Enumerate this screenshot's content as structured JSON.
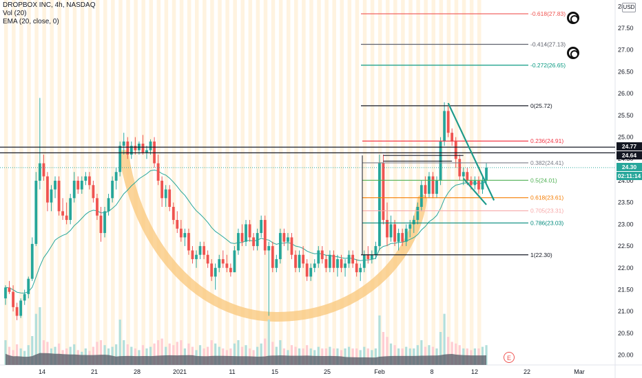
{
  "legend": {
    "title": "DROPBOX INC, 4h, NASDAQ",
    "volume": "Vol (20)",
    "ema": "EMA (20, close, 0)"
  },
  "currency": "USD",
  "price_badges": [
    {
      "label": "24.77",
      "color": "#131722"
    },
    {
      "label": "24.64",
      "color": "#131722"
    },
    {
      "label": "24.30",
      "color": "#26a69a"
    },
    {
      "label": "02:11:14",
      "color": "#26a69a"
    }
  ],
  "earnings_marker": "E",
  "chart_data": {
    "type": "candlestick",
    "symbol": "DROPBOX INC",
    "interval": "4h",
    "exchange": "NASDAQ",
    "y_axis": {
      "range": [
        19.9,
        28.1
      ],
      "ticks": [
        "20.00",
        "20.50",
        "21.00",
        "21.50",
        "22.00",
        "22.50",
        "23.00",
        "23.50",
        "24.00",
        "24.50",
        "25.00",
        "25.50",
        "26.00",
        "26.50",
        "27.00",
        "27.50",
        "28.00"
      ]
    },
    "x_axis": {
      "ticks": [
        "14",
        "21",
        "28",
        "2021",
        "11",
        "15",
        "25",
        "Feb",
        "8",
        "12",
        "22",
        "Mar"
      ]
    },
    "horizontal_levels": [
      24.77,
      24.64
    ],
    "fibonacci": [
      {
        "ratio": "-0.618",
        "price": 27.83,
        "color": "#ef5350"
      },
      {
        "ratio": "-0.414",
        "price": 27.13,
        "color": "#5d606b"
      },
      {
        "ratio": "-0.272",
        "price": 26.65,
        "color": "#089981"
      },
      {
        "ratio": "0",
        "price": 25.72,
        "color": "#131722"
      },
      {
        "ratio": "0.236",
        "price": 24.91,
        "color": "#f23645"
      },
      {
        "ratio": "0.382",
        "price": 24.41,
        "color": "#787b86"
      },
      {
        "ratio": "0.5",
        "price": 24.01,
        "color": "#4caf50"
      },
      {
        "ratio": "0.618",
        "price": 23.61,
        "color": "#f57c00"
      },
      {
        "ratio": "0.705",
        "price": 23.31,
        "color": "#f7a8a8"
      },
      {
        "ratio": "0.786",
        "price": 23.03,
        "color": "#00897b"
      },
      {
        "ratio": "1",
        "price": 22.3,
        "color": "#131722"
      }
    ],
    "candles": [
      [
        21.3,
        21.6,
        21.15,
        21.55
      ],
      [
        21.55,
        21.7,
        21.4,
        21.45
      ],
      [
        21.45,
        21.6,
        21.0,
        21.1
      ],
      [
        21.1,
        21.2,
        20.8,
        20.9
      ],
      [
        20.9,
        21.3,
        20.85,
        21.25
      ],
      [
        21.25,
        21.5,
        21.15,
        21.4
      ],
      [
        21.4,
        21.8,
        21.3,
        21.75
      ],
      [
        21.75,
        22.7,
        21.7,
        22.55
      ],
      [
        22.55,
        24.2,
        22.5,
        24.0
      ],
      [
        24.0,
        25.9,
        23.8,
        24.4
      ],
      [
        24.4,
        24.6,
        24.0,
        24.1
      ],
      [
        24.1,
        24.2,
        23.3,
        23.5
      ],
      [
        23.5,
        23.9,
        23.3,
        23.8
      ],
      [
        23.8,
        24.1,
        23.6,
        24.0
      ],
      [
        24.0,
        24.1,
        23.2,
        23.3
      ],
      [
        23.3,
        23.6,
        23.1,
        23.2
      ],
      [
        23.2,
        23.5,
        23.0,
        23.1
      ],
      [
        23.1,
        23.7,
        23.0,
        23.6
      ],
      [
        23.6,
        24.2,
        23.5,
        24.0
      ],
      [
        24.0,
        24.1,
        23.7,
        23.8
      ],
      [
        23.8,
        24.1,
        23.7,
        24.0
      ],
      [
        24.0,
        24.2,
        23.9,
        24.1
      ],
      [
        24.1,
        24.2,
        23.8,
        23.9
      ],
      [
        23.9,
        24.0,
        23.5,
        23.6
      ],
      [
        23.6,
        23.7,
        23.1,
        23.2
      ],
      [
        23.2,
        23.4,
        22.6,
        22.8
      ],
      [
        22.8,
        23.4,
        22.7,
        23.3
      ],
      [
        23.3,
        23.7,
        23.2,
        23.6
      ],
      [
        23.6,
        24.1,
        23.5,
        24.0
      ],
      [
        24.0,
        24.3,
        23.8,
        24.2
      ],
      [
        24.2,
        24.9,
        24.1,
        24.8
      ],
      [
        24.8,
        25.1,
        24.6,
        24.9
      ],
      [
        24.9,
        25.0,
        24.5,
        24.6
      ],
      [
        24.6,
        24.9,
        24.5,
        24.8
      ],
      [
        24.8,
        25.0,
        24.6,
        24.7
      ],
      [
        24.7,
        24.9,
        24.6,
        24.85
      ],
      [
        24.85,
        25.05,
        24.6,
        24.65
      ],
      [
        24.65,
        24.8,
        24.5,
        24.7
      ],
      [
        24.7,
        24.95,
        24.6,
        24.9
      ],
      [
        24.9,
        25.0,
        24.3,
        24.4
      ],
      [
        24.4,
        24.6,
        23.9,
        24.0
      ],
      [
        24.0,
        24.1,
        23.4,
        23.6
      ],
      [
        23.6,
        23.9,
        23.4,
        23.8
      ],
      [
        23.8,
        23.9,
        23.3,
        23.4
      ],
      [
        23.4,
        23.5,
        23.0,
        23.1
      ],
      [
        23.1,
        23.3,
        22.8,
        22.9
      ],
      [
        22.9,
        23.1,
        22.6,
        22.7
      ],
      [
        22.7,
        22.9,
        22.5,
        22.8
      ],
      [
        22.8,
        22.9,
        22.3,
        22.4
      ],
      [
        22.4,
        22.5,
        22.1,
        22.2
      ],
      [
        22.2,
        22.4,
        22.0,
        22.3
      ],
      [
        22.3,
        22.6,
        22.2,
        22.5
      ],
      [
        22.5,
        22.6,
        22.2,
        22.3
      ],
      [
        22.3,
        22.4,
        22.0,
        22.1
      ],
      [
        22.1,
        22.2,
        21.7,
        21.8
      ],
      [
        21.8,
        22.1,
        21.5,
        22.0
      ],
      [
        22.0,
        22.3,
        21.9,
        22.2
      ],
      [
        22.2,
        22.4,
        22.0,
        22.1
      ],
      [
        22.1,
        22.3,
        21.9,
        22.0
      ],
      [
        22.0,
        22.1,
        21.8,
        21.9
      ],
      [
        21.9,
        22.5,
        21.9,
        22.4
      ],
      [
        22.4,
        22.9,
        22.3,
        22.8
      ],
      [
        22.8,
        23.0,
        22.5,
        22.6
      ],
      [
        22.6,
        23.1,
        22.5,
        23.0
      ],
      [
        23.0,
        23.1,
        22.6,
        22.7
      ],
      [
        22.7,
        22.8,
        22.4,
        22.5
      ],
      [
        22.5,
        22.9,
        22.4,
        22.8
      ],
      [
        22.8,
        23.2,
        22.7,
        23.1
      ],
      [
        23.1,
        23.2,
        22.3,
        22.4
      ],
      [
        22.4,
        22.6,
        20.9,
        22.5
      ],
      [
        22.5,
        22.6,
        21.9,
        22.0
      ],
      [
        22.0,
        22.3,
        21.9,
        22.2
      ],
      [
        22.2,
        22.9,
        22.1,
        22.8
      ],
      [
        22.8,
        22.9,
        22.5,
        22.6
      ],
      [
        22.6,
        22.8,
        22.4,
        22.7
      ],
      [
        22.7,
        22.8,
        22.2,
        22.3
      ],
      [
        22.3,
        22.4,
        21.9,
        22.0
      ],
      [
        22.0,
        22.4,
        21.9,
        22.3
      ],
      [
        22.3,
        22.5,
        22.0,
        22.1
      ],
      [
        22.1,
        22.2,
        21.7,
        21.8
      ],
      [
        21.8,
        22.1,
        21.7,
        22.0
      ],
      [
        22.0,
        22.2,
        21.9,
        22.1
      ],
      [
        22.1,
        22.5,
        22.0,
        22.4
      ],
      [
        22.4,
        22.5,
        22.1,
        22.2
      ],
      [
        22.2,
        22.3,
        21.9,
        22.0
      ],
      [
        22.0,
        22.4,
        21.9,
        22.3
      ],
      [
        22.3,
        22.4,
        21.9,
        22.0
      ],
      [
        22.0,
        22.3,
        21.8,
        22.2
      ],
      [
        22.2,
        22.3,
        21.9,
        22.0
      ],
      [
        22.0,
        22.2,
        21.8,
        22.1
      ],
      [
        22.1,
        22.4,
        22.0,
        22.3
      ],
      [
        22.3,
        22.4,
        22.0,
        22.1
      ],
      [
        22.1,
        22.2,
        21.8,
        21.9
      ],
      [
        21.9,
        22.1,
        21.7,
        22.0
      ],
      [
        22.0,
        22.4,
        21.9,
        22.3
      ],
      [
        22.3,
        22.5,
        22.1,
        22.2
      ],
      [
        22.2,
        22.4,
        22.1,
        22.3
      ],
      [
        22.3,
        22.6,
        22.2,
        22.5
      ],
      [
        22.5,
        24.6,
        22.4,
        24.4
      ],
      [
        24.4,
        24.6,
        23.0,
        23.1
      ],
      [
        23.1,
        23.5,
        22.5,
        22.7
      ],
      [
        22.7,
        23.2,
        22.6,
        23.0
      ],
      [
        23.0,
        23.1,
        22.5,
        22.6
      ],
      [
        22.6,
        22.9,
        22.4,
        22.8
      ],
      [
        22.8,
        22.9,
        22.5,
        22.6
      ],
      [
        22.6,
        23.0,
        22.5,
        22.9
      ],
      [
        22.9,
        23.1,
        22.7,
        23.0
      ],
      [
        23.0,
        23.2,
        22.8,
        23.1
      ],
      [
        23.1,
        23.5,
        23.0,
        23.4
      ],
      [
        23.4,
        24.0,
        23.3,
        23.9
      ],
      [
        23.9,
        24.1,
        23.6,
        23.7
      ],
      [
        23.7,
        24.2,
        23.6,
        24.1
      ],
      [
        24.1,
        24.2,
        23.6,
        23.7
      ],
      [
        23.7,
        24.1,
        23.6,
        24.0
      ],
      [
        24.0,
        25.0,
        23.9,
        24.9
      ],
      [
        24.9,
        25.8,
        24.8,
        25.6
      ],
      [
        25.6,
        25.7,
        25.0,
        25.1
      ],
      [
        25.1,
        25.2,
        24.8,
        24.9
      ],
      [
        24.9,
        25.0,
        24.3,
        24.5
      ],
      [
        24.5,
        24.6,
        24.0,
        24.1
      ],
      [
        24.1,
        24.3,
        23.9,
        24.2
      ],
      [
        24.2,
        24.3,
        23.9,
        24.0
      ],
      [
        24.0,
        24.1,
        23.8,
        23.9
      ],
      [
        23.9,
        24.1,
        23.8,
        24.0
      ],
      [
        24.0,
        24.1,
        23.7,
        23.8
      ],
      [
        23.8,
        24.1,
        23.7,
        24.0
      ],
      [
        24.0,
        24.4,
        23.9,
        24.3
      ]
    ],
    "volume": [
      0.3,
      0.22,
      0.18,
      0.25,
      0.2,
      0.17,
      0.24,
      0.35,
      0.62,
      0.7,
      0.3,
      0.28,
      0.2,
      0.22,
      0.26,
      0.18,
      0.2,
      0.22,
      0.25,
      0.18,
      0.16,
      0.2,
      0.17,
      0.22,
      0.28,
      0.3,
      0.24,
      0.2,
      0.22,
      0.25,
      0.55,
      0.3,
      0.25,
      0.22,
      0.2,
      0.18,
      0.24,
      0.2,
      0.22,
      0.26,
      0.3,
      0.32,
      0.22,
      0.26,
      0.24,
      0.28,
      0.3,
      0.2,
      0.26,
      0.22,
      0.18,
      0.24,
      0.2,
      0.22,
      0.3,
      0.26,
      0.22,
      0.2,
      0.18,
      0.2,
      0.26,
      0.3,
      0.22,
      0.24,
      0.2,
      0.18,
      0.22,
      0.26,
      0.32,
      0.55,
      0.28,
      0.22,
      0.3,
      0.2,
      0.18,
      0.24,
      0.22,
      0.2,
      0.2,
      0.24,
      0.2,
      0.18,
      0.22,
      0.2,
      0.2,
      0.22,
      0.2,
      0.2,
      0.18,
      0.2,
      0.22,
      0.2,
      0.2,
      0.18,
      0.22,
      0.2,
      0.18,
      0.2,
      0.6,
      0.4,
      0.34,
      0.26,
      0.24,
      0.2,
      0.2,
      0.22,
      0.2,
      0.2,
      0.24,
      0.3,
      0.22,
      0.24,
      0.22,
      0.2,
      0.4,
      0.62,
      0.34,
      0.28,
      0.26,
      0.24,
      0.2,
      0.2,
      0.18,
      0.2,
      0.2,
      0.22,
      0.24
    ],
    "trend_lines": [
      {
        "name": "falling-wedge-upper",
        "from": [
          116,
          25.78
        ],
        "to": [
          128,
          23.55
        ]
      },
      {
        "name": "falling-wedge-lower",
        "from": [
          120,
          24.05
        ],
        "to": [
          126,
          23.45
        ]
      },
      {
        "name": "flag-top-line",
        "from": [
          99,
          24.58
        ],
        "to": [
          120,
          24.58
        ]
      },
      {
        "name": "flag-line-2",
        "from": [
          99,
          24.45
        ],
        "to": [
          117,
          24.45
        ]
      }
    ]
  }
}
